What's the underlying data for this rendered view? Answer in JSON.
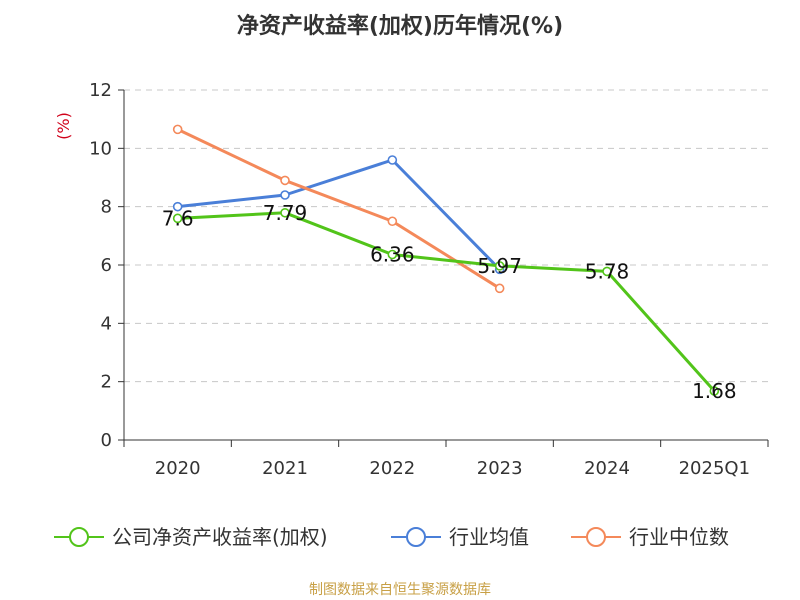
{
  "chart_data": {
    "type": "line",
    "title": "净资产收益率(加权)历年情况(%)",
    "ylabel": "(%)",
    "categories": [
      "2020",
      "2021",
      "2022",
      "2023",
      "2024",
      "2025Q1"
    ],
    "ylim": [
      0,
      12
    ],
    "yticks": [
      0,
      2,
      4,
      6,
      8,
      10,
      12
    ],
    "grid": true,
    "legend_position": "bottom",
    "series": [
      {
        "name": "公司净资产收益率(加权)",
        "color": "#52c41a",
        "values": [
          7.6,
          7.79,
          6.36,
          5.97,
          5.78,
          1.68
        ],
        "labels": [
          "7.6",
          "7.79",
          "6.36",
          "5.97",
          "5.78",
          "1.68"
        ]
      },
      {
        "name": "行业均值",
        "color": "#4a7fd8",
        "values": [
          8.0,
          8.4,
          9.6,
          5.85,
          null,
          null
        ]
      },
      {
        "name": "行业中位数",
        "color": "#f4895a",
        "values": [
          10.65,
          8.9,
          7.5,
          5.2,
          null,
          null
        ]
      }
    ]
  },
  "footer": "制图数据来自恒生聚源数据库"
}
